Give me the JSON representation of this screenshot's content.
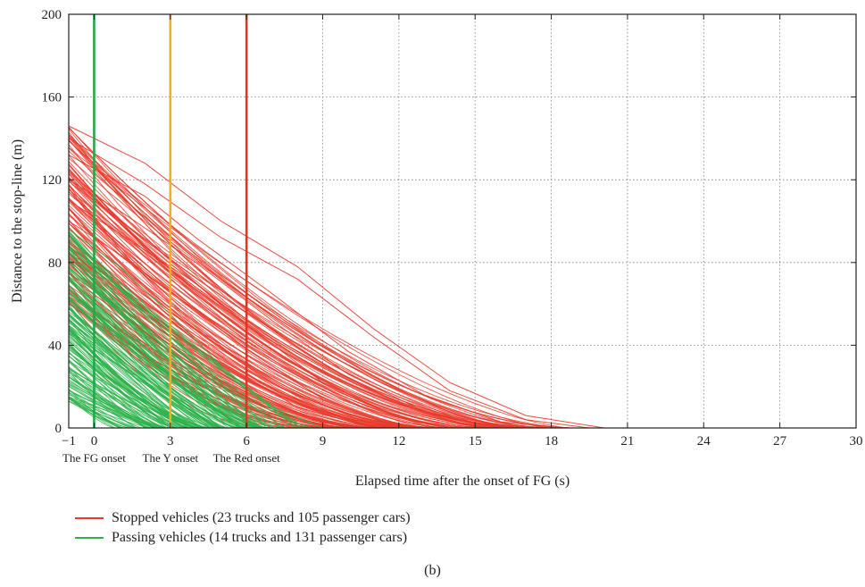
{
  "colors": {
    "stopped": "#e8392a",
    "passing": "#2db34a",
    "fg_line": "#22a84a",
    "y_line": "#f4ad1c",
    "red_line": "#e53324",
    "grid": "#7f7f7f",
    "axis": "#231f20"
  },
  "chart_data": {
    "type": "line",
    "xlabel": "Elapsed time after the onset of FG (s)",
    "ylabel": "Distance to the stop-line (m)",
    "xlim": [
      -1,
      30
    ],
    "ylim": [
      0,
      200
    ],
    "x_ticks": [
      -1,
      0,
      3,
      6,
      9,
      12,
      15,
      18,
      21,
      24,
      27,
      30
    ],
    "x_tick_labels": [
      "−1",
      "0",
      "3",
      "6",
      "9",
      "12",
      "15",
      "18",
      "21",
      "24",
      "27",
      "30"
    ],
    "y_ticks": [
      0,
      40,
      80,
      120,
      160,
      200
    ],
    "grid": true,
    "grid_style": "dotted",
    "legend_position": "bottom-left, below plot",
    "vertical_markers": [
      {
        "x": 0,
        "label": "The FG onset",
        "color": "#22a84a"
      },
      {
        "x": 3,
        "label": "The Y onset",
        "color": "#f4ad1c"
      },
      {
        "x": 6,
        "label": "The Red onset",
        "color": "#e53324"
      }
    ],
    "series": [
      {
        "name": "Stopped vehicles (23 trucks and 105 passenger cars)",
        "color": "#e8392a",
        "count": 128,
        "initial_distance_range_m": [
          60,
          146
        ],
        "stop_time_range_s": [
          7,
          20.2
        ],
        "sample_trajectories": [
          {
            "x": [
              -1,
              2,
              5,
              8,
              11,
              14,
              17,
              20.1
            ],
            "y": [
              146,
              128,
              100,
              78,
              48,
              22,
              6,
              0
            ]
          },
          {
            "x": [
              -1,
              2,
              5,
              8,
              11,
              14,
              17,
              19.5
            ],
            "y": [
              140,
              118,
              92,
              72,
              44,
              18,
              4,
              0
            ]
          },
          {
            "x": [
              -1,
              2,
              4,
              7,
              10,
              13,
              16,
              18.5
            ],
            "y": [
              132,
              112,
              92,
              65,
              37,
              16,
              3,
              0
            ]
          },
          {
            "x": [
              -1,
              1,
              4,
              7,
              10,
              13,
              16
            ],
            "y": [
              120,
              105,
              80,
              52,
              26,
              8,
              0
            ]
          },
          {
            "x": [
              -1,
              1,
              4,
              6,
              9,
              12,
              14
            ],
            "y": [
              110,
              94,
              70,
              50,
              22,
              5,
              0
            ]
          },
          {
            "x": [
              -1,
              1,
              3,
              6,
              9,
              12
            ],
            "y": [
              100,
              84,
              66,
              38,
              14,
              0
            ]
          },
          {
            "x": [
              -1,
              1,
              3,
              5,
              8,
              11
            ],
            "y": [
              88,
              70,
              52,
              32,
              10,
              0
            ]
          },
          {
            "x": [
              -1,
              1,
              3,
              5,
              7,
              9.5
            ],
            "y": [
              75,
              58,
              40,
              22,
              8,
              0
            ]
          },
          {
            "x": [
              -1,
              1,
              3,
              5,
              7
            ],
            "y": [
              62,
              44,
              26,
              10,
              0
            ]
          }
        ]
      },
      {
        "name": "Passing vehicles (14 trucks and 131 passenger cars)",
        "color": "#2db34a",
        "count": 145,
        "initial_distance_range_m": [
          12,
          96
        ],
        "pass_time_range_s": [
          0.5,
          9
        ],
        "sample_trajectories": [
          {
            "x": [
              -1,
              1,
              3,
              5,
              7,
              9
            ],
            "y": [
              96,
              78,
              55,
              30,
              10,
              0
            ]
          },
          {
            "x": [
              -1,
              1,
              3,
              5,
              7.5
            ],
            "y": [
              88,
              68,
              44,
              20,
              0
            ]
          },
          {
            "x": [
              -1,
              1,
              3,
              5,
              6.5
            ],
            "y": [
              78,
              56,
              32,
              10,
              0
            ]
          },
          {
            "x": [
              -1,
              1,
              3,
              5
            ],
            "y": [
              66,
              44,
              20,
              0
            ]
          },
          {
            "x": [
              -1,
              1,
              3,
              4.2
            ],
            "y": [
              55,
              34,
              12,
              0
            ]
          },
          {
            "x": [
              -1,
              1,
              3
            ],
            "y": [
              42,
              20,
              0
            ]
          },
          {
            "x": [
              -1,
              0.5,
              2
            ],
            "y": [
              28,
              12,
              0
            ]
          },
          {
            "x": [
              -1,
              0,
              1
            ],
            "y": [
              15,
              6,
              0
            ]
          }
        ]
      }
    ],
    "caption": "(b)"
  }
}
